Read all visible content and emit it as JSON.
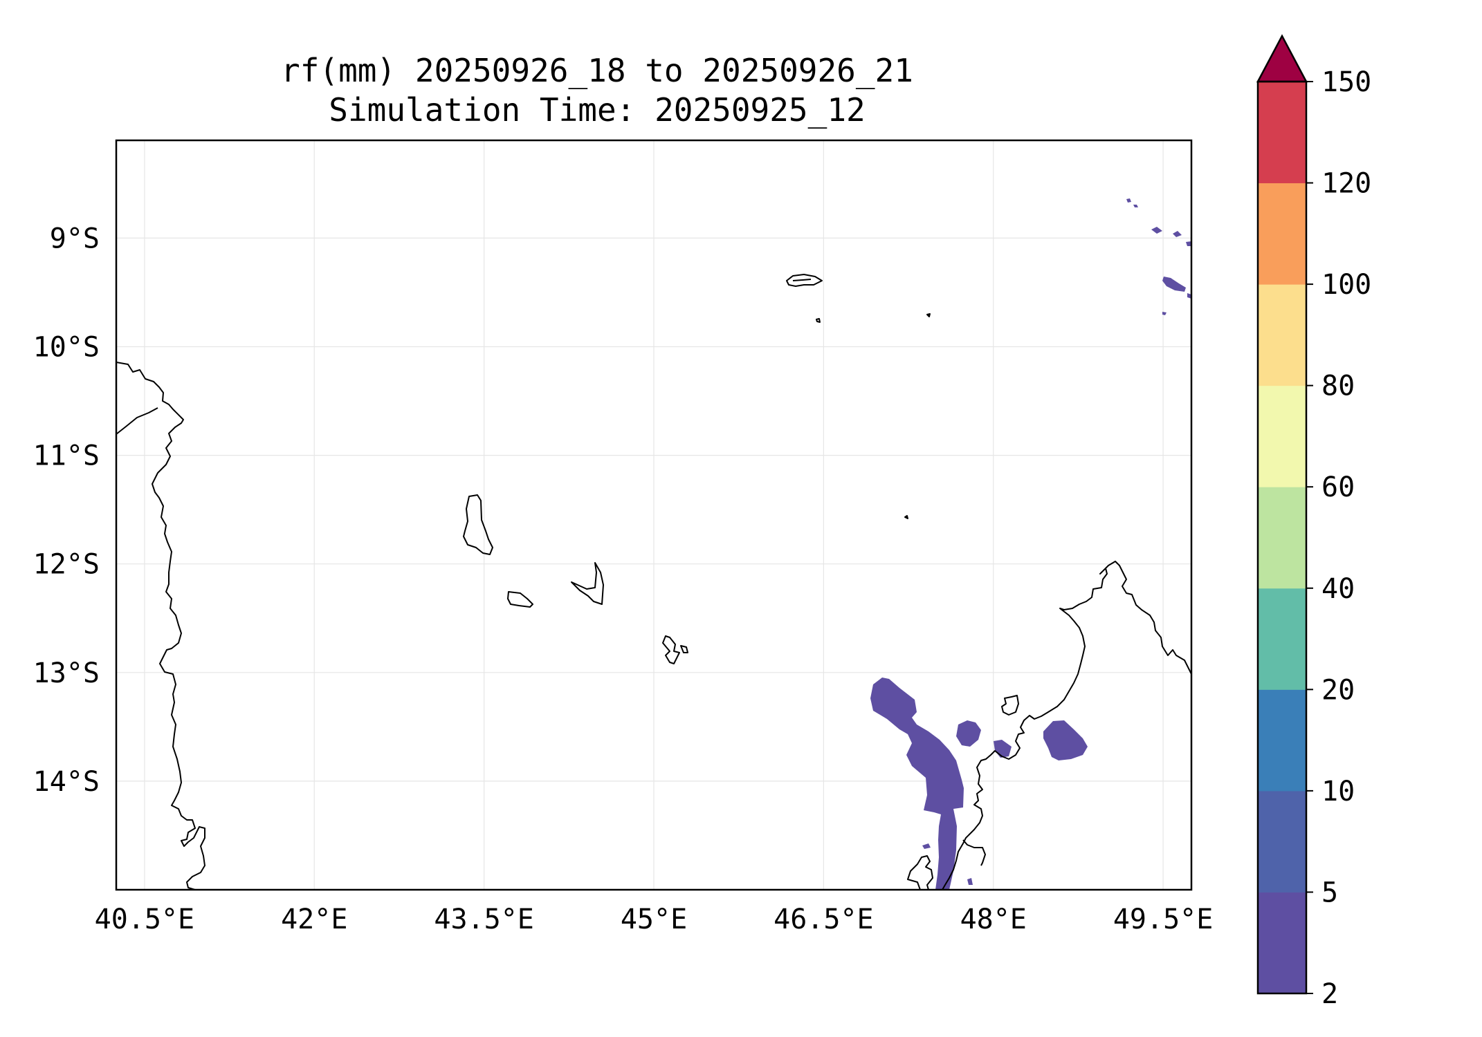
{
  "title": {
    "line1": "rf(mm) 20250926_18 to 20250926_21",
    "line2": "Simulation Time: 20250925_12"
  },
  "map": {
    "lon_range": [
      40.25,
      49.75
    ],
    "lat_range": [
      -15.0,
      -8.1
    ],
    "x_ticks": [
      {
        "value": 40.5,
        "label": "40.5°E"
      },
      {
        "value": 42.0,
        "label": "42°E"
      },
      {
        "value": 43.5,
        "label": "43.5°E"
      },
      {
        "value": 45.0,
        "label": "45°E"
      },
      {
        "value": 46.5,
        "label": "46.5°E"
      },
      {
        "value": 48.0,
        "label": "48°E"
      },
      {
        "value": 49.5,
        "label": "49.5°E"
      }
    ],
    "y_ticks": [
      {
        "value": -9,
        "label": "9°S"
      },
      {
        "value": -10,
        "label": "10°S"
      },
      {
        "value": -11,
        "label": "11°S"
      },
      {
        "value": -12,
        "label": "12°S"
      },
      {
        "value": -13,
        "label": "13°S"
      },
      {
        "value": -14,
        "label": "14°S"
      }
    ],
    "grid": true,
    "coastline_color": "#000000",
    "rain_color": "#5e4fa2"
  },
  "colorbar": {
    "levels": [
      "2",
      "5",
      "10",
      "20",
      "40",
      "60",
      "80",
      "100",
      "120",
      "150"
    ],
    "colors": [
      "#5e4fa2",
      "#4f63aa",
      "#3a7fb8",
      "#62bda8",
      "#bde4a0",
      "#f2f8ae",
      "#fcde8d",
      "#f99e5b",
      "#d53e4f"
    ],
    "extend_color": "#9e0142",
    "extend": "max"
  }
}
